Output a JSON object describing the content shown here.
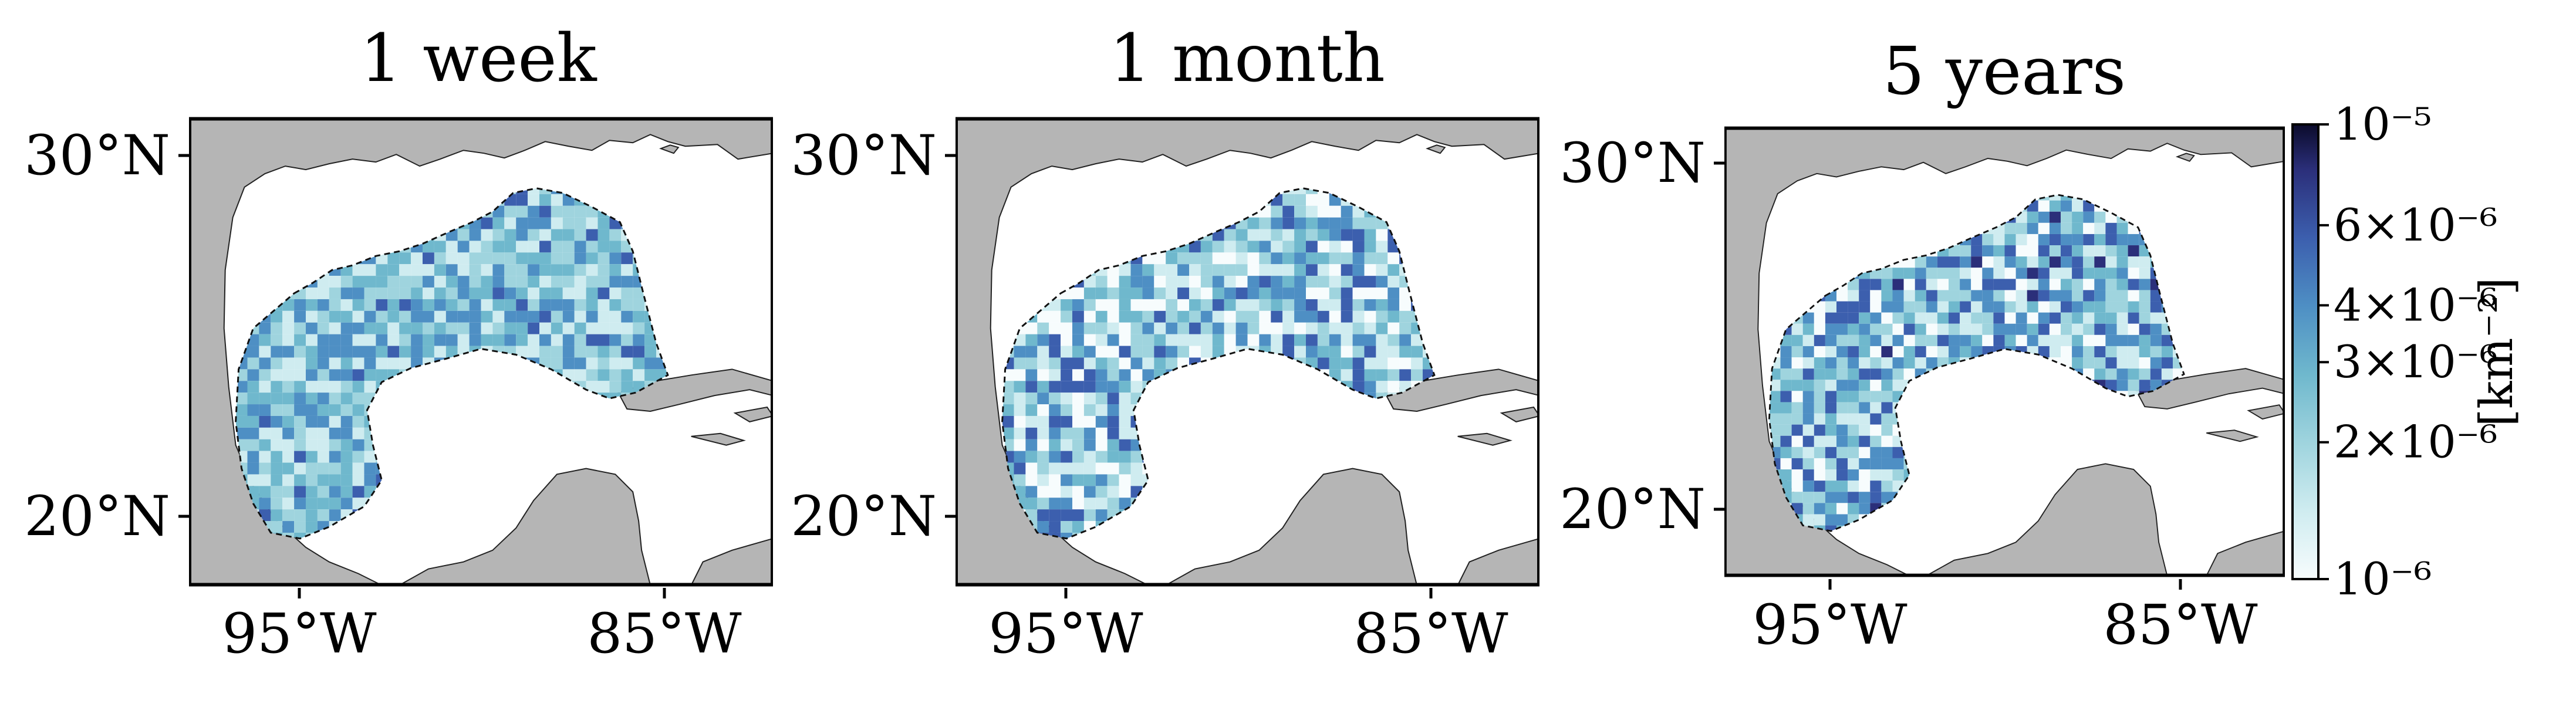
{
  "panels": [
    {
      "title": "1 week"
    },
    {
      "title": "1 month"
    },
    {
      "title": "5 years"
    }
  ],
  "axes": {
    "lat_ticks": [
      {
        "deg": 30,
        "label": "30°N"
      },
      {
        "deg": 20,
        "label": "20°N"
      }
    ],
    "lon_ticks": [
      {
        "deg": -95,
        "label": "95°W"
      },
      {
        "deg": -85,
        "label": "85°W"
      }
    ],
    "lon_range": [
      -98,
      -82
    ],
    "lat_range": [
      18,
      31
    ]
  },
  "colorbar": {
    "unit_label": "[km⁻²]",
    "scale": "log",
    "range": [
      1e-06,
      1e-05
    ],
    "ticks": [
      {
        "value": 1e-05,
        "label": "10⁻⁵"
      },
      {
        "value": 6e-06,
        "label": "6×10⁻⁶"
      },
      {
        "value": 4e-06,
        "label": "4×10⁻⁶"
      },
      {
        "value": 3e-06,
        "label": "3×10⁻⁶"
      },
      {
        "value": 2e-06,
        "label": "2×10⁻⁶"
      },
      {
        "value": 1e-06,
        "label": "10⁻⁶"
      }
    ],
    "colors": [
      "#f7fcfd",
      "#cfecf0",
      "#9fd4de",
      "#6fb8cd",
      "#4e8fc4",
      "#3c5fae",
      "#2b2f7a",
      "#0b0b2b"
    ]
  },
  "colors": {
    "land": "#b5b5b5",
    "ocean": "#ffffff",
    "frame": "#000000"
  }
}
